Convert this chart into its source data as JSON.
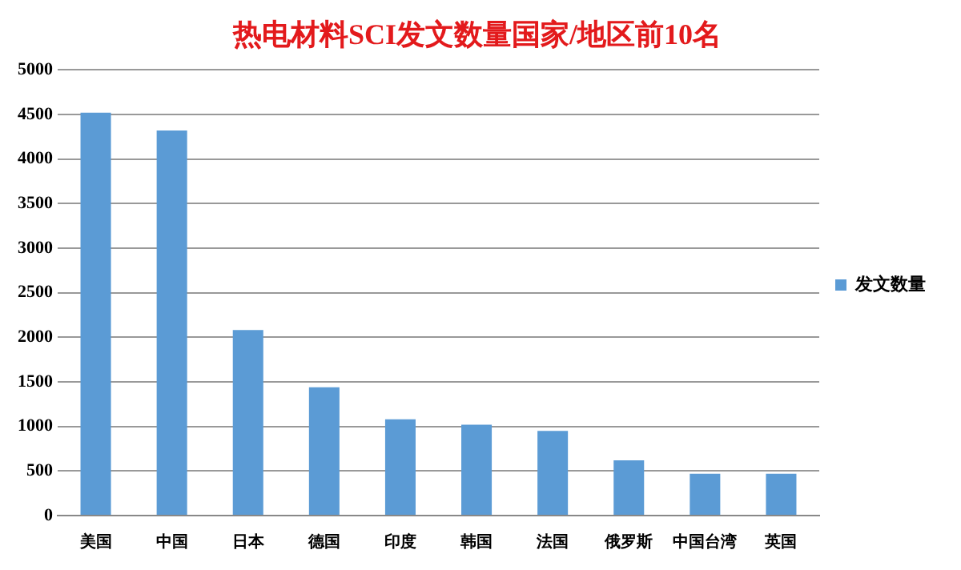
{
  "chart_data": {
    "type": "bar",
    "title": "热电材料SCI发文数量国家/地区前10名",
    "categories": [
      "美国",
      "中国",
      "日本",
      "德国",
      "印度",
      "韩国",
      "法国",
      "俄罗斯",
      "中国台湾",
      "英国"
    ],
    "series": [
      {
        "name": "发文数量",
        "color": "#5b9bd5",
        "values": [
          4520,
          4320,
          2080,
          1440,
          1080,
          1020,
          950,
          620,
          470,
          470
        ]
      }
    ],
    "ylim": [
      0,
      5000
    ],
    "yticks": [
      0,
      500,
      1000,
      1500,
      2000,
      2500,
      3000,
      3500,
      4000,
      4500,
      5000
    ],
    "grid": "y",
    "legend": "right"
  }
}
